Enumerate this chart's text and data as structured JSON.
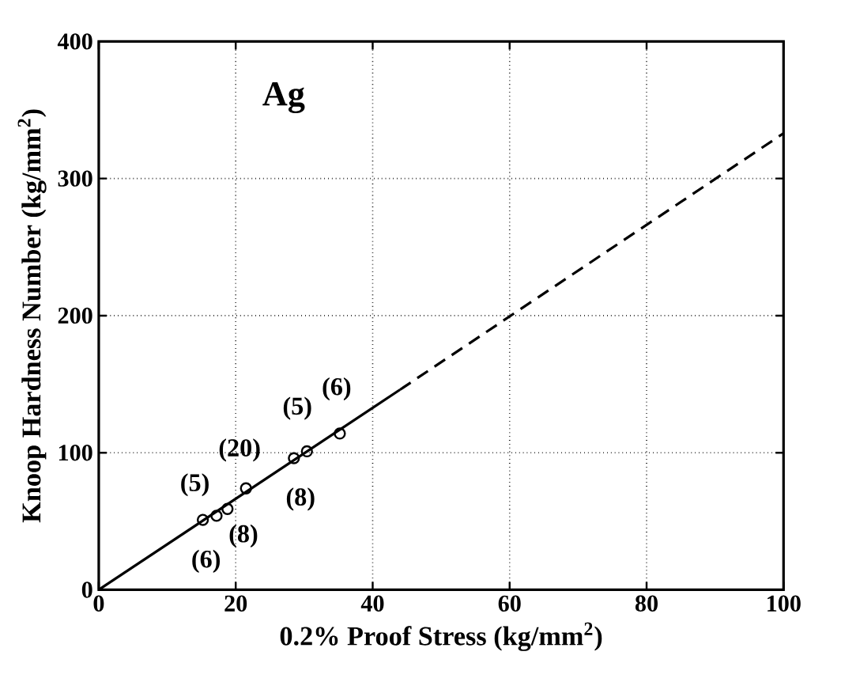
{
  "chart_data": {
    "type": "scatter",
    "title": "Ag",
    "xlabel": "0.2% Proof Stress (kg/mm$^{2}$)",
    "ylabel": "Knoop Hardness Number (kg/mm$^{2}$)",
    "xlim": [
      0,
      100
    ],
    "ylim": [
      0,
      400
    ],
    "xticks": [
      0,
      20,
      40,
      60,
      80,
      100
    ],
    "yticks": [
      0,
      100,
      200,
      300,
      400
    ],
    "grid": true,
    "series": [
      {
        "color": "#000000",
        "marker": "circle",
        "x": [
          15.2,
          17.2,
          18.8,
          21.5,
          28.5,
          30.4,
          35.2
        ],
        "values": [
          51,
          54,
          59,
          74,
          96,
          101,
          114
        ]
      },
      {
        "type": "line",
        "color": "#000000",
        "line_style": "solid",
        "marker": "none",
        "x": [
          0,
          44
        ],
        "values": [
          0,
          146
        ]
      },
      {
        "type": "line",
        "color": "#000000",
        "line_style": "dashed",
        "marker": "none",
        "x": [
          44,
          100
        ],
        "values": [
          146,
          333
        ]
      }
    ],
    "annotations": [
      {
        "text": "(6)",
        "x": 15.2,
        "y": 51
      },
      {
        "text": "(5)",
        "x": 15.2,
        "y": 51
      },
      {
        "text": "(8)",
        "x": 18.8,
        "y": 59
      },
      {
        "text": "(20)",
        "x": 21.5,
        "y": 74
      },
      {
        "text": "(8)",
        "x": 30.4,
        "y": 101
      },
      {
        "text": "(5)",
        "x": 30.4,
        "y": 101
      },
      {
        "text": "(6)",
        "x": 35.2,
        "y": 114
      }
    ]
  }
}
